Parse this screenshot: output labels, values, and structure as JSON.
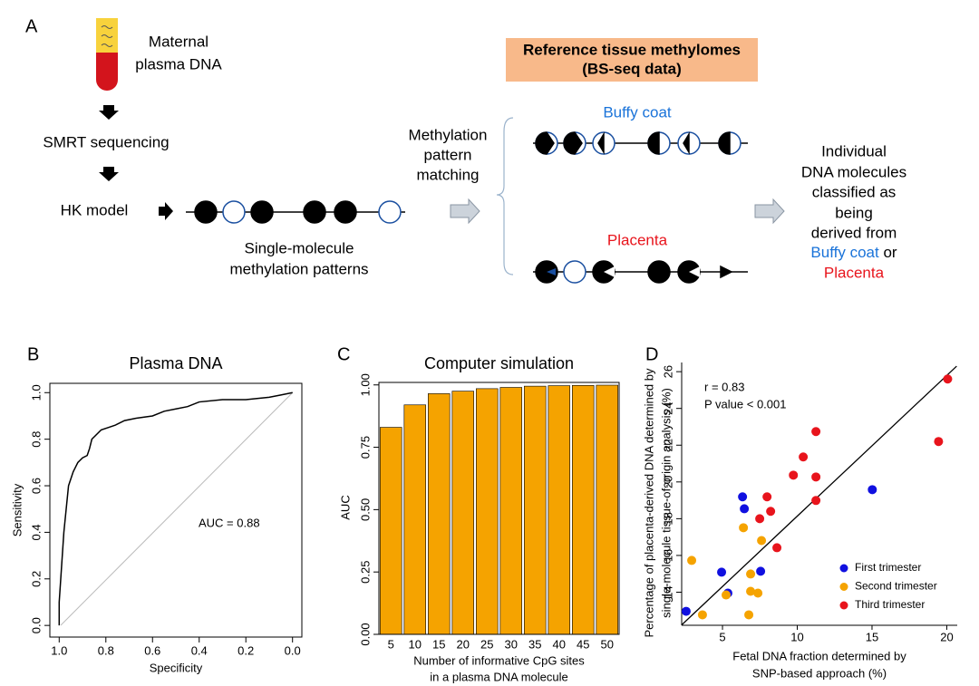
{
  "diagram": {
    "panel_label": "A",
    "sample": [
      "Maternal",
      "plasma DNA"
    ],
    "step1": "SMRT sequencing",
    "step2": "HK model",
    "molecule_caption": [
      "Single-molecule",
      "methylation patterns"
    ],
    "matching": [
      "Methylation",
      "pattern",
      "matching"
    ],
    "reference": [
      "Reference tissue methylomes",
      "(BS-seq data)"
    ],
    "tissue1": "Buffy coat",
    "tissue2": "Placenta",
    "result": [
      "Individual",
      "DNA molecules",
      "classified as",
      "being",
      "derived from"
    ],
    "result_tissue1": "Buffy coat",
    "result_or": " or",
    "result_tissue2": "Placenta"
  },
  "chart_data": [
    {
      "panel_label": "B",
      "type": "line",
      "title": "Plasma DNA",
      "x_label": "Specificity",
      "y_label": "Sensitivity",
      "annotation": "AUC = 0.88",
      "color": "#000000",
      "x": [
        1.0,
        1.0,
        0.99,
        0.98,
        0.97,
        0.96,
        0.94,
        0.92,
        0.9,
        0.88,
        0.87,
        0.86,
        0.84,
        0.82,
        0.79,
        0.76,
        0.72,
        0.67,
        0.6,
        0.55,
        0.5,
        0.45,
        0.4,
        0.3,
        0.2,
        0.1,
        0.05,
        0.0
      ],
      "values": [
        0.0,
        0.1,
        0.25,
        0.4,
        0.5,
        0.6,
        0.66,
        0.7,
        0.72,
        0.73,
        0.76,
        0.8,
        0.82,
        0.84,
        0.85,
        0.86,
        0.88,
        0.89,
        0.9,
        0.92,
        0.93,
        0.94,
        0.96,
        0.97,
        0.97,
        0.98,
        0.99,
        1.0
      ],
      "xlim": [
        1.04,
        -0.04
      ],
      "ylim": [
        -0.05,
        1.04
      ],
      "xticks": [
        {
          "value": 1,
          "label": "1.0"
        },
        0.8,
        0.6,
        0.4,
        0.2,
        {
          "value": 0,
          "label": "0.0"
        }
      ],
      "yticks": [
        {
          "value": 0,
          "label": "0.0"
        },
        0.2,
        0.4,
        0.6,
        0.8,
        {
          "value": 1,
          "label": "1.0"
        }
      ]
    },
    {
      "panel_label": "C",
      "type": "bar",
      "title": "Computer simulation",
      "x_label": [
        "Number of informative CpG sites",
        "in a plasma DNA molecule"
      ],
      "y_label": "AUC",
      "categories": [
        "5",
        "10",
        "15",
        "20",
        "25",
        "30",
        "35",
        "40",
        "45",
        "50"
      ],
      "values": [
        0.83,
        0.92,
        0.965,
        0.975,
        0.985,
        0.99,
        0.995,
        0.997,
        0.998,
        0.999
      ],
      "color": "#f5a300",
      "ylim": [
        0,
        1.01
      ],
      "yticks": [
        {
          "value": 0,
          "label": "0.00"
        },
        0.25,
        {
          "value": 0.5,
          "label": "0.50"
        },
        0.75,
        {
          "value": 1,
          "label": "1.00"
        }
      ]
    },
    {
      "panel_label": "D",
      "type": "scatter",
      "x_label": [
        "Fetal DNA fraction determined by",
        "SNP-based approach (%)"
      ],
      "y_label": [
        "Percentage of placenta-derived DNA determined by",
        "single-molecule tissue-of-origin analysis (%)"
      ],
      "annotations": [
        "r = 0.83",
        "P value < 0.001"
      ],
      "xlim": [
        2.27,
        20.7
      ],
      "ylim": [
        12.2,
        26.5
      ],
      "xticks": [
        5,
        10,
        15,
        20
      ],
      "yticks": [
        14,
        16,
        18,
        20,
        22,
        24,
        26
      ],
      "legend": "lower right",
      "trendline": {
        "x": [
          2.27,
          20.66
        ],
        "y": [
          12.22,
          26.3
        ]
      },
      "series": [
        {
          "name": "First trimester",
          "color": "#1010e0",
          "x": [
            2.57,
            5.36,
            4.94,
            7.55,
            6.34,
            6.46,
            15.02
          ],
          "values": [
            12.96,
            13.95,
            15.09,
            15.14,
            19.19,
            18.54,
            19.58
          ]
        },
        {
          "name": "Second trimester",
          "color": "#f5a300",
          "x": [
            2.94,
            3.66,
            5.24,
            6.4,
            6.76,
            6.88,
            7.37,
            6.88,
            7.61
          ],
          "values": [
            15.73,
            12.77,
            13.85,
            17.51,
            12.77,
            14.05,
            13.95,
            14.99,
            16.81
          ]
        },
        {
          "name": "Third trimester",
          "color": "#e8141c",
          "x": [
            7.49,
            7.98,
            8.22,
            8.64,
            9.74,
            10.4,
            11.25,
            11.25,
            11.25,
            19.45,
            20.06
          ],
          "values": [
            18.0,
            19.19,
            18.4,
            16.42,
            20.37,
            21.36,
            22.74,
            20.27,
            18.99,
            22.2,
            25.6
          ]
        }
      ]
    }
  ]
}
